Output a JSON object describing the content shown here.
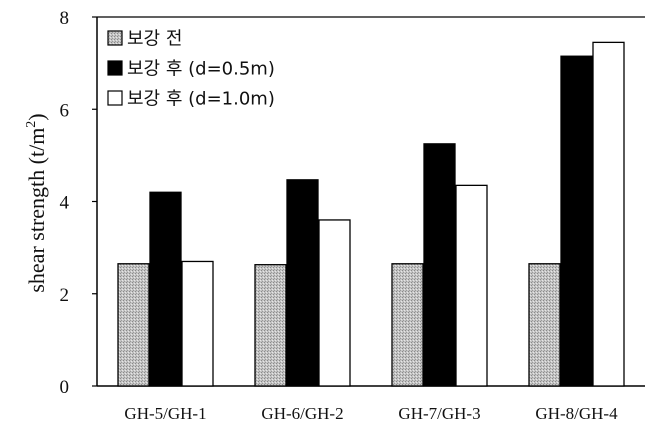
{
  "chart_data": {
    "type": "bar",
    "categories": [
      "GH-5/GH-1",
      "GH-6/GH-2",
      "GH-7/GH-3",
      "GH-8/GH-4"
    ],
    "series": [
      {
        "name": "보강 전",
        "values": [
          2.65,
          2.63,
          2.65,
          2.65
        ],
        "fill": "#bdbdbd",
        "pattern": "dotted-gray"
      },
      {
        "name": "보강 후 (d=0.5m)",
        "values": [
          4.2,
          4.47,
          5.25,
          7.15
        ],
        "fill": "#000000"
      },
      {
        "name": "보강 후 (d=1.0m)",
        "values": [
          2.7,
          3.6,
          4.35,
          7.45
        ],
        "fill": "#ffffff"
      }
    ],
    "ylabel_main": "shear strength (t/m",
    "ylabel_sup": "2",
    "ylabel_end": ")",
    "xlabel": "",
    "ylim": [
      0,
      8
    ],
    "yticks": [
      "0",
      "2",
      "4",
      "6",
      "8"
    ],
    "legend_position": "top-left",
    "grid": false
  }
}
